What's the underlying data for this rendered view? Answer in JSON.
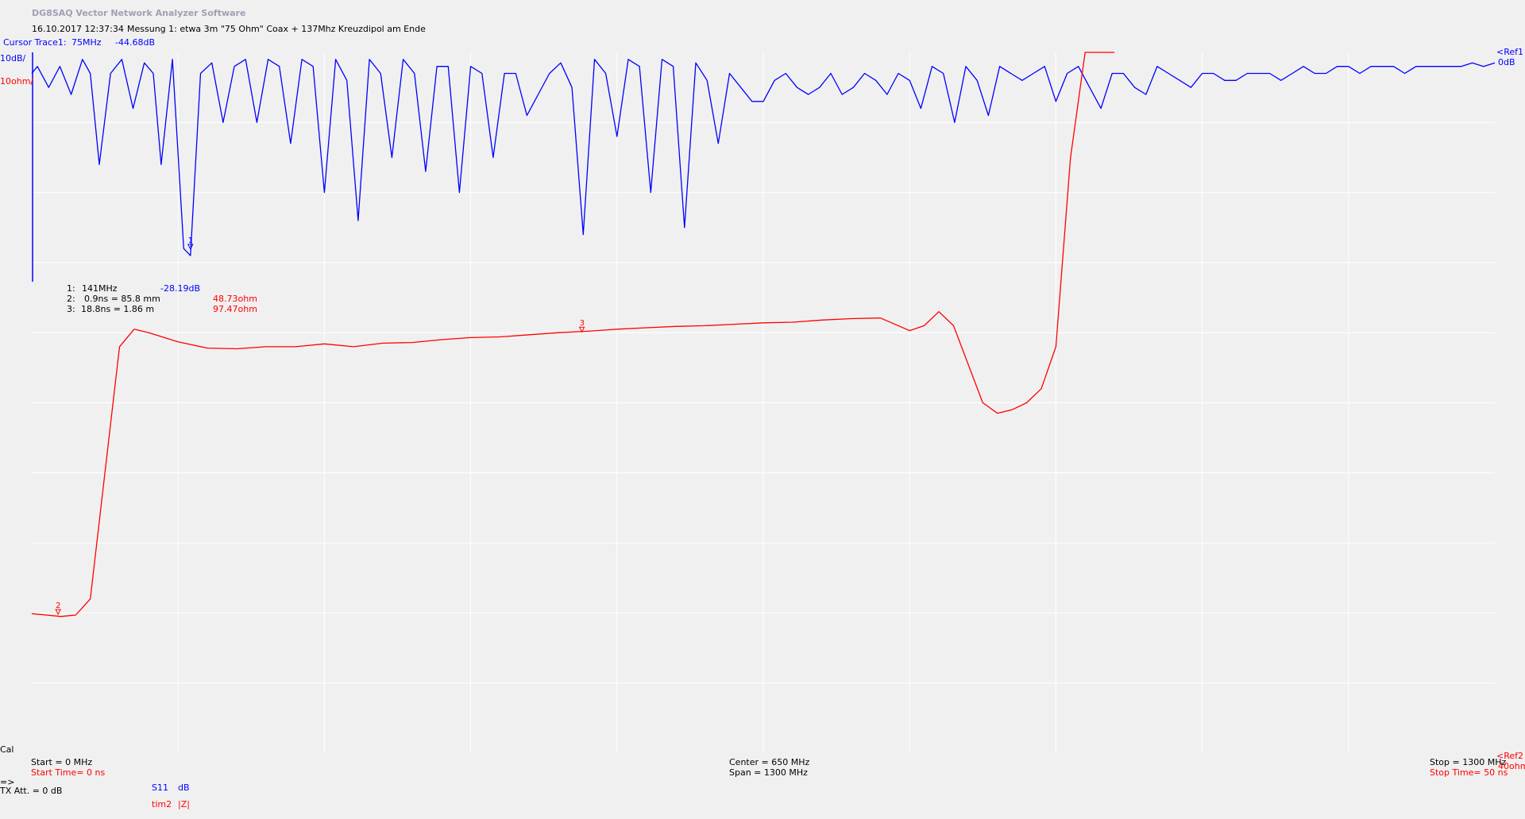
{
  "app": {
    "title": "DG8SAQ Vector Network Analyzer Software",
    "datetime": "16.10.2017   12:37:34",
    "measurement": "Messung 1: etwa 3m \"75 Ohm\" Coax + 137Mhz Kreuzdipol am Ende"
  },
  "cursor": {
    "label": "Cursor Trace1:",
    "freq": "75MHz",
    "value": "-44.68dB"
  },
  "scale": {
    "trace1": "10dB/",
    "trace2": "10ohm/"
  },
  "refs": {
    "ref1": "<Ref1",
    "ref1_value": "0dB",
    "ref2": "<Ref2",
    "ref2_value": "40ohm"
  },
  "markers": [
    {
      "id": "1:",
      "position": "141MHz",
      "value": "-28.19dB",
      "color": "#0000ff"
    },
    {
      "id": "2:",
      "position": "0.9ns = 85.8 mm",
      "value": "48.73ohm",
      "color": "#ff0000"
    },
    {
      "id": "3:",
      "position": "18.8ns = 1.86 m",
      "value": "97.47ohm",
      "color": "#ff0000"
    }
  ],
  "marker_tags": {
    "m1": "1",
    "m2": "2",
    "m3": "3"
  },
  "footer": {
    "cal": "Cal",
    "start": "Start = 0 MHz",
    "start_time": "Start Time= 0 ns",
    "center": "Center = 650 MHz",
    "span": "Span = 1300 MHz",
    "stop": "Stop Time= 50 ns",
    "stop_freq": "Stop = 1300 MHz",
    "arrow": "=>",
    "tx_att": "TX Att.  = 0 dB",
    "s11": "S11",
    "s11_unit": "dB",
    "tim2": "tim2",
    "tim2_unit": "|Z|"
  },
  "colors": {
    "trace1": "#0000ff",
    "trace2": "#ff0000",
    "grid": "#ffffff",
    "background": "#f0f0f0"
  },
  "chart_data": [
    {
      "type": "line",
      "name": "S11",
      "unit": "dB",
      "xlim": [
        0,
        1300
      ],
      "x_unit": "MHz",
      "ylim": [
        -100,
        0
      ],
      "grid": true,
      "x": [
        0,
        5,
        15,
        25,
        35,
        45,
        52,
        60,
        70,
        80,
        90,
        100,
        108,
        115,
        125,
        135,
        141,
        150,
        160,
        170,
        180,
        190,
        200,
        210,
        220,
        230,
        240,
        250,
        260,
        270,
        280,
        290,
        300,
        310,
        320,
        330,
        340,
        350,
        360,
        370,
        380,
        390,
        400,
        410,
        420,
        430,
        440,
        450,
        460,
        470,
        480,
        490,
        500,
        510,
        520,
        530,
        540,
        550,
        560,
        570,
        580,
        590,
        600,
        610,
        620,
        630,
        640,
        650,
        660,
        670,
        680,
        690,
        700,
        710,
        720,
        730,
        740,
        750,
        760,
        770,
        780,
        790,
        800,
        810,
        820,
        830,
        840,
        850,
        860,
        870,
        880,
        890,
        900,
        910,
        920,
        930,
        940,
        950,
        960,
        970,
        980,
        990,
        1000,
        1010,
        1020,
        1030,
        1040,
        1050,
        1060,
        1070,
        1080,
        1090,
        1100,
        1110,
        1120,
        1130,
        1140,
        1150,
        1160,
        1170,
        1180,
        1190,
        1200,
        1210,
        1220,
        1230,
        1240,
        1250,
        1260,
        1270,
        1280,
        1290,
        1300
      ],
      "values": [
        -3,
        -2,
        -5,
        -2,
        -6,
        -1,
        -3,
        -16,
        -3,
        -1,
        -8,
        -1.5,
        -3,
        -16,
        -1,
        -28,
        -29,
        -3,
        -1.5,
        -10,
        -2,
        -1,
        -10,
        -1,
        -2,
        -13,
        -1,
        -2,
        -20,
        -1,
        -4,
        -24,
        -1,
        -3,
        -15,
        -1,
        -3,
        -17,
        -2,
        -2,
        -20,
        -2,
        -3,
        -15,
        -3,
        -3,
        -9,
        -6,
        -3,
        -1.5,
        -5,
        -26,
        -1,
        -3,
        -12,
        -1,
        -2,
        -20,
        -1,
        -2,
        -25,
        -1.5,
        -4,
        -13,
        -3,
        -5,
        -7,
        -7,
        -4,
        -3,
        -5,
        -6,
        -5,
        -3,
        -6,
        -5,
        -3,
        -4,
        -6,
        -3,
        -4,
        -8,
        -2,
        -3,
        -10,
        -2,
        -4,
        -9,
        -2,
        -3,
        -4,
        -3,
        -2,
        -7,
        -3,
        -2,
        -5,
        -8,
        -3,
        -3,
        -5,
        -6,
        -2,
        -3,
        -4,
        -5,
        -3,
        -3,
        -4,
        -4,
        -3,
        -3,
        -3,
        -4,
        -3,
        -2,
        -3,
        -3,
        -2,
        -2,
        -3,
        -2,
        -2,
        -2,
        -3,
        -2,
        -2,
        -2,
        -2,
        -2,
        -1.5,
        -2,
        -1.5
      ]
    },
    {
      "type": "line",
      "name": "tim2",
      "unit": "ohm",
      "xlim": [
        0,
        50
      ],
      "x_unit": "ns",
      "ylim": [
        -60,
        40
      ],
      "grid": true,
      "x": [
        0,
        0.5,
        1,
        1.5,
        2,
        2.5,
        3,
        3.5,
        4,
        5,
        6,
        7,
        8,
        9,
        10,
        11,
        12,
        13,
        14,
        15,
        16,
        17,
        18,
        19,
        20,
        21,
        22,
        23,
        24,
        25,
        26,
        27,
        28,
        29,
        30,
        30.5,
        31,
        31.5,
        32,
        32.5,
        33,
        33.5,
        34,
        34.5,
        35,
        35.5,
        36,
        36.5,
        37
      ],
      "values": [
        -40.1,
        -40.3,
        -40.5,
        -40.3,
        -38,
        -20,
        -2,
        0.5,
        0,
        -1.3,
        -2.2,
        -2.3,
        -2,
        -2,
        -1.6,
        -2,
        -1.5,
        -1.4,
        -1,
        -0.7,
        -0.6,
        -0.3,
        0,
        0.2,
        0.5,
        0.7,
        0.9,
        1.0,
        1.2,
        1.4,
        1.5,
        1.8,
        2.0,
        2.1,
        0.3,
        1.0,
        3,
        1,
        -4.5,
        -10,
        -11.5,
        -11,
        -10,
        -8,
        -2,
        25,
        40,
        40,
        40
      ]
    }
  ]
}
